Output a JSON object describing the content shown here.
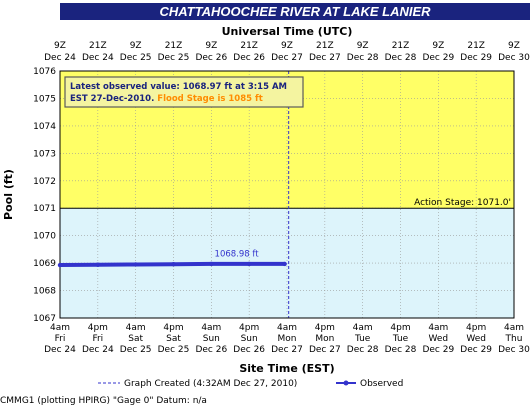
{
  "chart_data": {
    "type": "line",
    "title": "CHATTAHOOCHEE RIVER AT LAKE LANIER",
    "top_axis_title": "Universal Time (UTC)",
    "xlabel": "Site Time (EST)",
    "ylabel": "Pool (ft)",
    "ylim": [
      1067,
      1076
    ],
    "yticks": [
      "1067",
      "1068",
      "1069",
      "1070",
      "1071",
      "1072",
      "1073",
      "1074",
      "1075",
      "1076"
    ],
    "x_ticks_bottom": [
      {
        "t": "4am",
        "d": "Fri",
        "date": "Dec 24"
      },
      {
        "t": "4pm",
        "d": "Fri",
        "date": "Dec 24"
      },
      {
        "t": "4am",
        "d": "Sat",
        "date": "Dec 25"
      },
      {
        "t": "4pm",
        "d": "Sat",
        "date": "Dec 25"
      },
      {
        "t": "4am",
        "d": "Sun",
        "date": "Dec 26"
      },
      {
        "t": "4pm",
        "d": "Sun",
        "date": "Dec 26"
      },
      {
        "t": "4am",
        "d": "Mon",
        "date": "Dec 27"
      },
      {
        "t": "4pm",
        "d": "Mon",
        "date": "Dec 27"
      },
      {
        "t": "4am",
        "d": "Tue",
        "date": "Dec 28"
      },
      {
        "t": "4pm",
        "d": "Tue",
        "date": "Dec 28"
      },
      {
        "t": "4am",
        "d": "Wed",
        "date": "Dec 29"
      },
      {
        "t": "4pm",
        "d": "Wed",
        "date": "Dec 29"
      },
      {
        "t": "4am",
        "d": "Thu",
        "date": "Dec 30"
      }
    ],
    "x_ticks_top": [
      {
        "t": "9Z",
        "date": "Dec 24"
      },
      {
        "t": "21Z",
        "date": "Dec 24"
      },
      {
        "t": "9Z",
        "date": "Dec 25"
      },
      {
        "t": "21Z",
        "date": "Dec 25"
      },
      {
        "t": "9Z",
        "date": "Dec 26"
      },
      {
        "t": "21Z",
        "date": "Dec 26"
      },
      {
        "t": "9Z",
        "date": "Dec 27"
      },
      {
        "t": "21Z",
        "date": "Dec 27"
      },
      {
        "t": "9Z",
        "date": "Dec 28"
      },
      {
        "t": "21Z",
        "date": "Dec 28"
      },
      {
        "t": "9Z",
        "date": "Dec 29"
      },
      {
        "t": "21Z",
        "date": "Dec 29"
      },
      {
        "t": "9Z",
        "date": "Dec 30"
      }
    ],
    "flood_stage": 1085,
    "action_stage": 1071.0,
    "action_label": "Action Stage: 1071.0'",
    "series": [
      {
        "name": "Observed",
        "color": "#3333cc",
        "x": [
          "Dec 24 4am",
          "Dec 24 4pm",
          "Dec 25 4am",
          "Dec 25 4pm",
          "Dec 26 4am",
          "Dec 26 4pm",
          "Dec 27 3:15am"
        ],
        "y": [
          1068.93,
          1068.94,
          1068.95,
          1068.96,
          1068.97,
          1068.97,
          1068.97
        ]
      }
    ],
    "peak_label": "1068.98 ft",
    "graph_created_label": "Graph Created (4:32AM Dec 27, 2010)",
    "legend_observed": "Observed",
    "info_line1": "Latest observed value: 1068.97 ft at 3:15 AM",
    "info_line2a": "EST 27-Dec-2010.",
    "info_line2b": "Flood Stage is 1085 ft",
    "colors": {
      "above_action": "#ffff66",
      "below_action": "#ddf4fb",
      "series": "#3333cc",
      "title_bar": "#1a237e"
    }
  },
  "footer_text": "CMMG1 (plotting HPIRG) \"Gage 0\" Datum: n/a"
}
